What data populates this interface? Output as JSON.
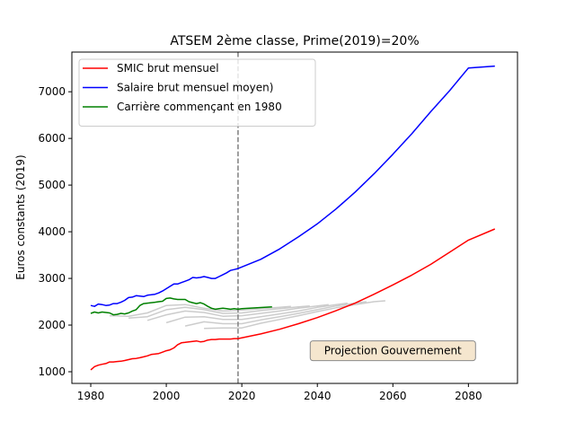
{
  "chart_data": {
    "type": "line",
    "title": "ATSEM 2ème classe, Prime(2019)=20%",
    "xlabel": "",
    "ylabel": "Euros constants (2019)",
    "xlim": [
      1975,
      2093
    ],
    "ylim": [
      750,
      7850
    ],
    "xticks": [
      1980,
      2000,
      2020,
      2040,
      2060,
      2080
    ],
    "yticks": [
      1000,
      2000,
      3000,
      4000,
      5000,
      6000,
      7000
    ],
    "grid": false,
    "legend_position": "top-left",
    "vline": {
      "x": 2019,
      "style": "dashed",
      "color": "#7f7f7f"
    },
    "annotation": {
      "text": "Projection Gouvernement",
      "x": 2060,
      "y": 1450
    },
    "series": [
      {
        "name": "SMIC brut mensuel",
        "color": "#ff0000",
        "x": [
          1980,
          1981,
          1982,
          1983,
          1984,
          1985,
          1986,
          1987,
          1988,
          1989,
          1990,
          1991,
          1992,
          1993,
          1994,
          1995,
          1996,
          1997,
          1998,
          1999,
          2000,
          2001,
          2002,
          2003,
          2004,
          2005,
          2006,
          2007,
          2008,
          2009,
          2010,
          2011,
          2012,
          2013,
          2014,
          2015,
          2016,
          2017,
          2018,
          2019,
          2025,
          2030,
          2035,
          2040,
          2045,
          2050,
          2055,
          2060,
          2065,
          2070,
          2075,
          2080,
          2087
        ],
        "values": [
          1040,
          1110,
          1140,
          1160,
          1175,
          1210,
          1210,
          1220,
          1225,
          1240,
          1260,
          1280,
          1285,
          1300,
          1320,
          1340,
          1370,
          1380,
          1390,
          1420,
          1450,
          1470,
          1510,
          1580,
          1620,
          1630,
          1640,
          1650,
          1660,
          1640,
          1650,
          1680,
          1690,
          1690,
          1700,
          1700,
          1700,
          1700,
          1710,
          1710,
          1810,
          1910,
          2030,
          2160,
          2310,
          2470,
          2660,
          2860,
          3070,
          3300,
          3560,
          3820,
          4060
        ]
      },
      {
        "name": "Salaire brut mensuel moyen)",
        "color": "#0000ff",
        "x": [
          1980,
          1981,
          1982,
          1983,
          1984,
          1985,
          1986,
          1987,
          1988,
          1989,
          1990,
          1991,
          1992,
          1993,
          1994,
          1995,
          1996,
          1997,
          1998,
          1999,
          2000,
          2001,
          2002,
          2003,
          2004,
          2005,
          2006,
          2007,
          2008,
          2009,
          2010,
          2011,
          2012,
          2013,
          2014,
          2015,
          2016,
          2017,
          2018,
          2019,
          2025,
          2030,
          2035,
          2040,
          2045,
          2050,
          2055,
          2060,
          2065,
          2070,
          2075,
          2080,
          2087
        ],
        "values": [
          2420,
          2400,
          2450,
          2440,
          2420,
          2430,
          2460,
          2460,
          2490,
          2530,
          2590,
          2600,
          2630,
          2620,
          2610,
          2640,
          2650,
          2660,
          2690,
          2730,
          2780,
          2830,
          2880,
          2880,
          2910,
          2940,
          2970,
          3020,
          3010,
          3020,
          3040,
          3020,
          3000,
          3000,
          3040,
          3080,
          3120,
          3170,
          3190,
          3210,
          3410,
          3630,
          3890,
          4170,
          4490,
          4850,
          5240,
          5660,
          6100,
          6570,
          7020,
          7510,
          7550
        ]
      },
      {
        "name": "Carrière commençant en 1980",
        "color": "#008000",
        "x": [
          1980,
          1981,
          1982,
          1983,
          1984,
          1985,
          1986,
          1987,
          1988,
          1989,
          1990,
          1991,
          1992,
          1993,
          1994,
          1995,
          1996,
          1997,
          1998,
          1999,
          2000,
          2001,
          2002,
          2003,
          2004,
          2005,
          2006,
          2007,
          2008,
          2009,
          2010,
          2011,
          2012,
          2013,
          2014,
          2015,
          2016,
          2017,
          2018,
          2019,
          2020,
          2022,
          2024,
          2026,
          2028
        ],
        "values": [
          2250,
          2280,
          2260,
          2280,
          2270,
          2260,
          2220,
          2230,
          2250,
          2240,
          2260,
          2300,
          2330,
          2420,
          2460,
          2470,
          2480,
          2490,
          2500,
          2510,
          2570,
          2580,
          2560,
          2550,
          2550,
          2550,
          2500,
          2480,
          2460,
          2480,
          2450,
          2400,
          2360,
          2340,
          2350,
          2360,
          2350,
          2340,
          2350,
          2340,
          2350,
          2360,
          2370,
          2380,
          2390
        ]
      }
    ],
    "other_careers": {
      "color": "#cccccc",
      "series": [
        {
          "x": [
            1985,
            1990,
            1995,
            2000,
            2005,
            2010,
            2015,
            2020,
            2025,
            2030,
            2033
          ],
          "values": [
            2200,
            2190,
            2260,
            2420,
            2440,
            2360,
            2300,
            2320,
            2350,
            2380,
            2400
          ]
        },
        {
          "x": [
            1990,
            1995,
            2000,
            2005,
            2010,
            2015,
            2020,
            2025,
            2030,
            2035,
            2038
          ],
          "values": [
            2150,
            2180,
            2330,
            2380,
            2330,
            2250,
            2260,
            2310,
            2350,
            2390,
            2410
          ]
        },
        {
          "x": [
            1995,
            2000,
            2005,
            2010,
            2015,
            2020,
            2025,
            2030,
            2035,
            2040,
            2043
          ],
          "values": [
            2100,
            2220,
            2300,
            2270,
            2190,
            2200,
            2250,
            2300,
            2360,
            2410,
            2440
          ]
        },
        {
          "x": [
            2000,
            2005,
            2010,
            2015,
            2020,
            2025,
            2030,
            2035,
            2040,
            2045,
            2048
          ],
          "values": [
            2050,
            2170,
            2180,
            2120,
            2120,
            2180,
            2240,
            2300,
            2380,
            2440,
            2470
          ]
        },
        {
          "x": [
            2005,
            2010,
            2015,
            2020,
            2025,
            2030,
            2035,
            2040,
            2045,
            2050,
            2053
          ],
          "values": [
            1980,
            2070,
            2030,
            2030,
            2110,
            2180,
            2250,
            2330,
            2410,
            2470,
            2500
          ]
        },
        {
          "x": [
            2010,
            2015,
            2020,
            2025,
            2030,
            2035,
            2040,
            2045,
            2050,
            2055,
            2058
          ],
          "values": [
            1930,
            1940,
            1940,
            2040,
            2120,
            2200,
            2290,
            2370,
            2440,
            2500,
            2520
          ]
        }
      ]
    }
  }
}
